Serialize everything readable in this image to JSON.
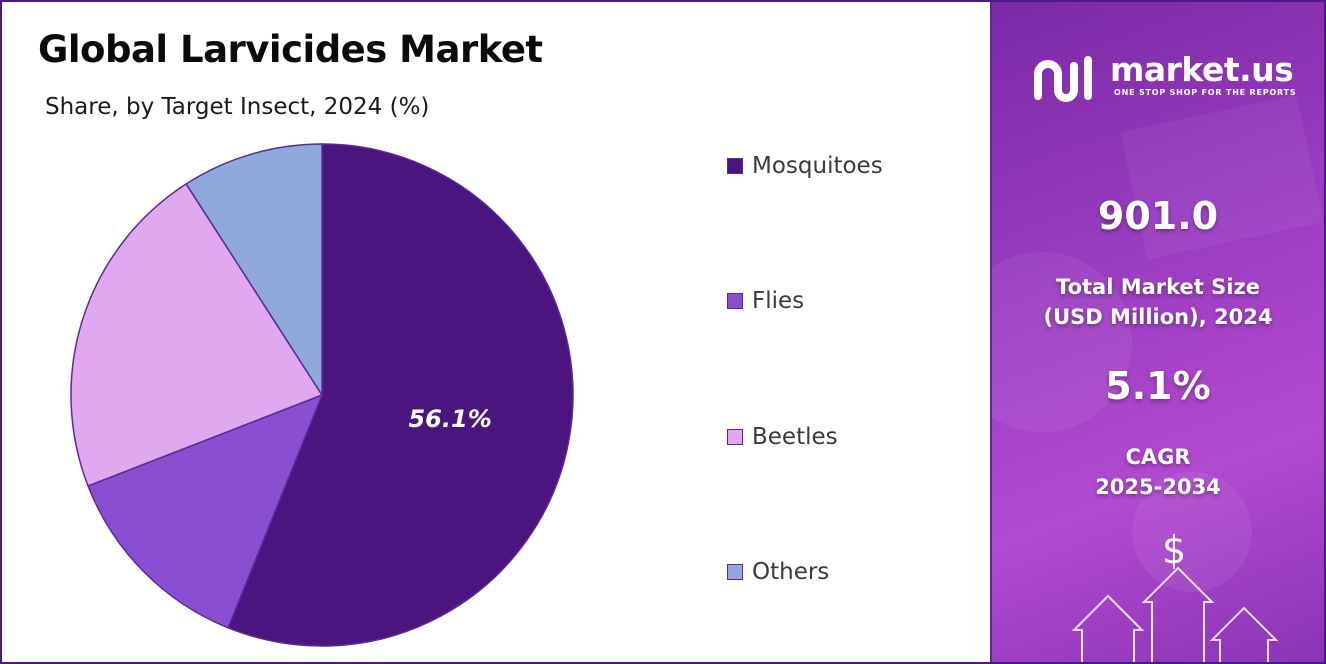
{
  "chart_data": {
    "type": "pie",
    "title": "Global Larvicides Market",
    "subtitle": "Share, by Target Insect, 2024 (%)",
    "slices": [
      {
        "label": "Mosquitoes",
        "value": 56.1,
        "color": "#4b1580",
        "value_label": "56.1%"
      },
      {
        "label": "Flies",
        "value": 13.0,
        "color": "#8a4fd0",
        "value_label": ""
      },
      {
        "label": "Beetles",
        "value": 21.8,
        "color": "#e0a8ee",
        "value_label": ""
      },
      {
        "label": "Others",
        "value": 9.1,
        "color": "#8fa9dc",
        "value_label": ""
      }
    ],
    "legend_position": "right"
  },
  "brand": {
    "name": "market.us",
    "tagline": "ONE STOP SHOP FOR THE REPORTS"
  },
  "stats": {
    "market_size_value": "901.0",
    "market_size_label_line1": "Total Market Size",
    "market_size_label_line2": "(USD Million), 2024",
    "cagr_value": "5.1%",
    "cagr_label_line1": "CAGR",
    "cagr_label_line2": "2025-2034"
  },
  "icons": {
    "dollar": "$"
  },
  "colors": {
    "frame": "#4b1a85",
    "panel": "#9b3dc2"
  }
}
